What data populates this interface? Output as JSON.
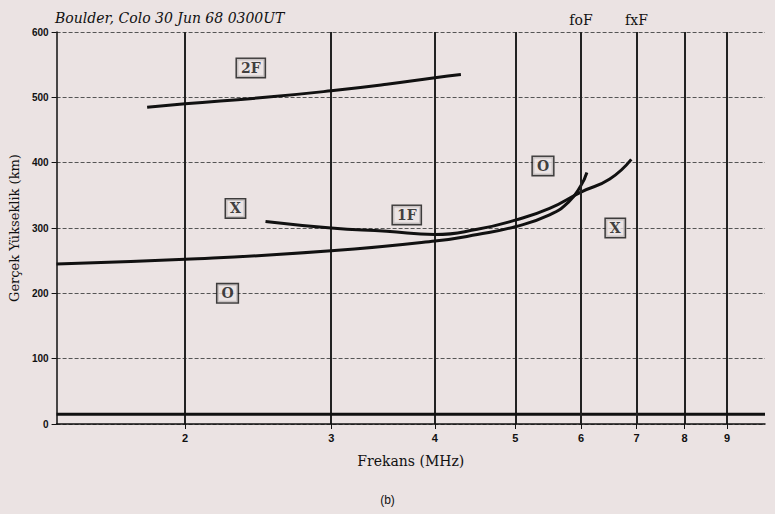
{
  "chart_data": {
    "type": "line",
    "title": "Boulder, Colo 30 Jun 68 0300UT",
    "x_label": "Frekans (MHz)",
    "y_label": "Gerçek Yükseklik (km)",
    "caption": "(b)",
    "log": "x",
    "xlim": [
      1.4,
      10
    ],
    "xticks": [
      2,
      3,
      4,
      5,
      6,
      7,
      8,
      9
    ],
    "ylim": [
      0,
      600
    ],
    "yticks": [
      0,
      100,
      200,
      300,
      400,
      500,
      600
    ],
    "grid": true,
    "series": [
      {
        "color": "#111111",
        "line_style": "solid",
        "x": [
          1.4,
          2,
          3,
          4,
          4.5,
          5,
          5.5,
          5.8,
          6.0,
          6.1
        ],
        "values": [
          245,
          252,
          265,
          280,
          290,
          302,
          320,
          340,
          365,
          385
        ]
      },
      {
        "color": "#111111",
        "line_style": "solid",
        "x": [
          2.5,
          3,
          3.5,
          4,
          4.5,
          5,
          5.5,
          6,
          6.5,
          6.9
        ],
        "values": [
          310,
          300,
          295,
          290,
          298,
          312,
          330,
          355,
          375,
          405
        ]
      },
      {
        "color": "#111111",
        "line_style": "solid",
        "x": [
          1.8,
          2,
          2.5,
          3,
          3.5,
          4,
          4.3
        ],
        "values": [
          485,
          490,
          500,
          510,
          520,
          530,
          535
        ]
      },
      {
        "color": "#111111",
        "line_style": "solid",
        "x": [
          1.4,
          2,
          4,
          6,
          8,
          10
        ],
        "values": [
          15,
          15,
          15,
          15,
          15,
          15
        ]
      }
    ],
    "annotations": [
      {
        "text": "2F",
        "x": 2.4,
        "y": 545
      },
      {
        "text": "X",
        "x": 2.3,
        "y": 330
      },
      {
        "text": "O",
        "x": 2.25,
        "y": 200
      },
      {
        "text": "1F",
        "x": 3.7,
        "y": 320
      },
      {
        "text": "O",
        "x": 5.4,
        "y": 395
      },
      {
        "text": "X",
        "x": 6.6,
        "y": 300
      }
    ],
    "markers": [
      {
        "text": "foF",
        "x": 6.0
      },
      {
        "text": "fxF",
        "x": 7.0
      }
    ]
  }
}
